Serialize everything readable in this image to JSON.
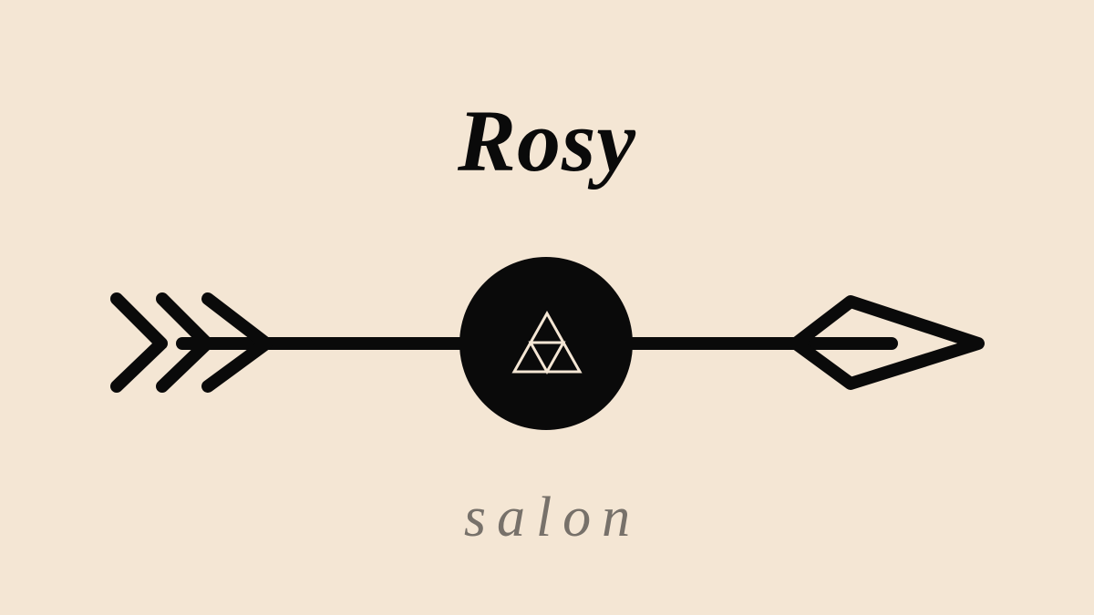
{
  "logo": {
    "name": "Rosy",
    "tagline": "salon",
    "emblem_icon": "arrow-with-circle-triforce-icon"
  },
  "colors": {
    "background": "#f4e6d4",
    "ink": "#0a0a0a",
    "tagline": "#77716a",
    "triangle_stroke": "#f4e6d4"
  }
}
